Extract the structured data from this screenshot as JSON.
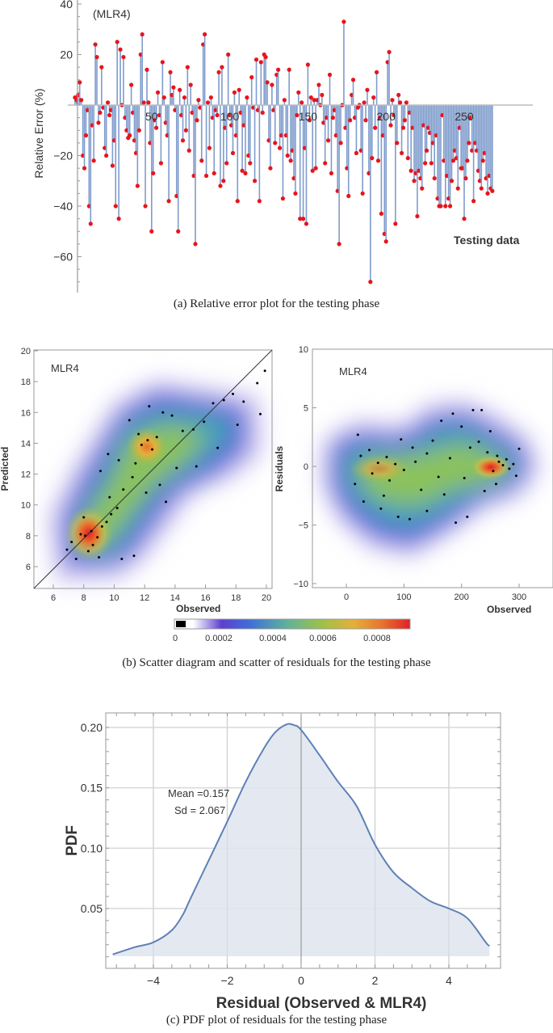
{
  "captions": {
    "a": "(a) Relative error plot for the testing phase",
    "b": "(b) Scatter diagram and scatter of residuals for the testing phase",
    "c": "(c) PDF plot of residuals for the testing phase"
  },
  "colors": {
    "stem": "#7f9ccc",
    "stem_marker": "#e8141c",
    "pdf_line": "#5e81b5",
    "pdf_fill": "#dfe5ef",
    "grid": "#d9d9d9",
    "axis": "#999999",
    "text": "#333333"
  },
  "chart_data": [
    {
      "id": "a",
      "type": "stem",
      "title": "(MLR4)",
      "xlabel": "Testing data",
      "ylabel": "Relative Error (%)",
      "xlim": [
        0,
        290
      ],
      "ylim": [
        -75,
        40
      ],
      "xticks": [
        50,
        100,
        150,
        200,
        250
      ],
      "yticks": [
        40,
        20,
        -20,
        -40,
        -60
      ],
      "values": [
        3,
        2,
        4,
        9,
        2,
        -20,
        -25,
        -12,
        -2,
        -40,
        -47,
        -8,
        -22,
        24,
        19,
        -7,
        -3,
        15,
        -1,
        -17,
        -20,
        1,
        -4,
        -2,
        -24,
        -14,
        -40,
        25,
        -45,
        22,
        0,
        19,
        -5,
        -10,
        -13,
        -12,
        8,
        -3,
        -14,
        -19,
        -32,
        -10,
        20,
        28,
        1,
        -40,
        14,
        1,
        -15,
        -50,
        -27,
        -6,
        -9,
        5,
        -4,
        -23,
        17,
        3,
        -7,
        -12,
        -38,
        13,
        4,
        7,
        -2,
        -36,
        -50,
        6,
        -4,
        -14,
        3,
        -10,
        15,
        -18,
        8,
        -3,
        -28,
        -55,
        -6,
        2,
        -1,
        -22,
        24,
        28,
        -28,
        1,
        -17,
        3,
        -5,
        -27,
        -2,
        -4,
        13,
        -32,
        15,
        -30,
        -9,
        -23,
        20,
        -4,
        -8,
        -19,
        5,
        -12,
        -38,
        6,
        -3,
        -26,
        -8,
        -27,
        3,
        -20,
        -23,
        11,
        -1,
        -30,
        18,
        -2,
        -38,
        17,
        -3,
        20,
        19,
        9,
        -14,
        -25,
        8,
        -2,
        -15,
        12,
        14,
        -17,
        -12,
        -37,
        2,
        -12,
        -20,
        14,
        -22,
        -18,
        -29,
        -35,
        -4,
        5,
        -45,
        1,
        -45,
        -17,
        -47,
        16,
        -6,
        3,
        -26,
        2,
        -25,
        2,
        8,
        0,
        4,
        -7,
        -23,
        -5,
        -14,
        12,
        -27,
        -5,
        -2,
        -12,
        -34,
        -55,
        -15,
        0,
        33,
        -9,
        -25,
        -36,
        -6,
        4,
        10,
        -5,
        -19,
        -1,
        0,
        -18,
        -35,
        1,
        -6,
        6,
        -27,
        -70,
        -21,
        3,
        -9,
        13,
        -22,
        -5,
        -43,
        -12,
        -51,
        -54,
        17,
        21,
        -8,
        2,
        -4,
        -47,
        -15,
        4,
        1,
        -19,
        -9,
        -6,
        1,
        -21,
        -3,
        -26,
        -9,
        -30,
        -27,
        -44,
        -26,
        -29,
        -33,
        -8,
        -23,
        -18,
        -9,
        -11,
        -23,
        -15,
        -29,
        -12,
        -37,
        -40,
        -40,
        -4,
        -22,
        -40,
        -28,
        -37,
        -40,
        -30,
        -22,
        -18,
        -21,
        -33,
        -9,
        -25,
        -25,
        -45,
        -29,
        -22,
        -15,
        -5,
        -18,
        -38,
        -15,
        -18,
        -26,
        -30,
        -33,
        -22,
        -19,
        -29,
        -35,
        -28,
        -33,
        -34
      ],
      "grid": false
    },
    {
      "id": "b-left",
      "type": "scatter-density",
      "title": "MLR4",
      "xlabel": "Observed",
      "ylabel": "Predicted",
      "xlim": [
        4.5,
        20.5
      ],
      "ylim": [
        4.5,
        20
      ],
      "xticks": [
        6,
        8,
        10,
        12,
        14,
        16,
        18,
        20
      ],
      "yticks": [
        6,
        8,
        10,
        12,
        14,
        16,
        18,
        20
      ],
      "reference_line": "y = x",
      "density_peaks": [
        {
          "x": 8.8,
          "y": 8.2,
          "level": "high"
        },
        {
          "x": 12.0,
          "y": 14.0,
          "level": "medium-high"
        }
      ],
      "points": [
        [
          8.1,
          8.0
        ],
        [
          8.5,
          8.3
        ],
        [
          8.9,
          7.9
        ],
        [
          9.2,
          8.6
        ],
        [
          8.6,
          7.4
        ],
        [
          9.5,
          8.9
        ],
        [
          7.8,
          8.1
        ],
        [
          8.3,
          7.0
        ],
        [
          9.8,
          9.4
        ],
        [
          10.2,
          9.8
        ],
        [
          7.5,
          6.5
        ],
        [
          9.0,
          6.6
        ],
        [
          10.5,
          6.5
        ],
        [
          11.3,
          6.7
        ],
        [
          8.0,
          9.2
        ],
        [
          9.7,
          10.5
        ],
        [
          10.6,
          11.0
        ],
        [
          11.2,
          11.8
        ],
        [
          11.8,
          13.9
        ],
        [
          12.2,
          14.2
        ],
        [
          12.5,
          13.6
        ],
        [
          11.6,
          14.6
        ],
        [
          12.8,
          14.4
        ],
        [
          11.0,
          15.5
        ],
        [
          12.3,
          16.4
        ],
        [
          13.2,
          16.0
        ],
        [
          13.8,
          15.8
        ],
        [
          14.5,
          14.8
        ],
        [
          15.2,
          14.9
        ],
        [
          15.9,
          15.4
        ],
        [
          16.5,
          16.6
        ],
        [
          17.2,
          16.8
        ],
        [
          17.8,
          17.2
        ],
        [
          18.5,
          16.7
        ],
        [
          19.4,
          17.9
        ],
        [
          19.9,
          18.7
        ],
        [
          19.6,
          15.9
        ],
        [
          18.1,
          15.2
        ],
        [
          16.8,
          13.7
        ],
        [
          15.4,
          12.5
        ],
        [
          14.1,
          12.4
        ],
        [
          13.0,
          11.3
        ],
        [
          13.4,
          10.2
        ],
        [
          12.1,
          10.8
        ],
        [
          11.4,
          12.7
        ],
        [
          10.3,
          12.9
        ],
        [
          9.6,
          13.3
        ],
        [
          9.1,
          12.2
        ],
        [
          7.2,
          7.6
        ],
        [
          6.9,
          7.1
        ]
      ],
      "grid": false
    },
    {
      "id": "b-right",
      "type": "scatter-density",
      "title": "MLR4",
      "xlabel": "Observed",
      "ylabel": "Residuals",
      "xlim": [
        -20,
        360
      ],
      "ylim": [
        -10,
        10
      ],
      "xticks": [
        0,
        100,
        200,
        300
      ],
      "yticks": [
        10,
        5,
        0,
        -5,
        -10
      ],
      "density_peaks": [
        {
          "x": 272,
          "y": 0.3,
          "level": "high"
        },
        {
          "x": 80,
          "y": 0.1,
          "level": "medium"
        }
      ],
      "points": [
        [
          265,
          0.4
        ],
        [
          272,
          0.1
        ],
        [
          278,
          0.6
        ],
        [
          283,
          -0.2
        ],
        [
          262,
          0.9
        ],
        [
          290,
          0.2
        ],
        [
          255,
          -0.4
        ],
        [
          245,
          1.2
        ],
        [
          230,
          2.1
        ],
        [
          215,
          1.6
        ],
        [
          200,
          3.4
        ],
        [
          220,
          4.8
        ],
        [
          185,
          4.5
        ],
        [
          165,
          3.9
        ],
        [
          150,
          2.2
        ],
        [
          140,
          1.1
        ],
        [
          120,
          0.4
        ],
        [
          100,
          -0.3
        ],
        [
          85,
          0.2
        ],
        [
          70,
          0.8
        ],
        [
          55,
          0.3
        ],
        [
          40,
          1.4
        ],
        [
          20,
          2.7
        ],
        [
          15,
          -1.5
        ],
        [
          30,
          -3.0
        ],
        [
          60,
          -3.6
        ],
        [
          90,
          -4.3
        ],
        [
          110,
          -4.5
        ],
        [
          140,
          -3.8
        ],
        [
          170,
          -2.4
        ],
        [
          190,
          -4.8
        ],
        [
          210,
          -4.3
        ],
        [
          240,
          -2.1
        ],
        [
          260,
          -1.5
        ],
        [
          295,
          -0.8
        ],
        [
          300,
          1.5
        ],
        [
          250,
          3.0
        ],
        [
          235,
          4.8
        ],
        [
          130,
          -2.0
        ],
        [
          75,
          -1.2
        ],
        [
          45,
          -0.6
        ],
        [
          115,
          1.6
        ],
        [
          160,
          -0.9
        ],
        [
          180,
          0.7
        ],
        [
          205,
          -1.0
        ],
        [
          95,
          2.3
        ],
        [
          65,
          -2.5
        ],
        [
          25,
          0.9
        ]
      ],
      "grid": false
    },
    {
      "id": "b-colorbar",
      "type": "colorbar",
      "ticks": [
        "0",
        "0.0002",
        "0.0004",
        "0.0006",
        "0.0008"
      ],
      "range": [
        0,
        0.0009
      ]
    },
    {
      "id": "c",
      "type": "area",
      "title": "",
      "xlabel": "Residual (Observed & MLR4)",
      "ylabel": "PDF",
      "xlim": [
        -5.3,
        5.3
      ],
      "ylim": [
        0,
        0.212
      ],
      "xticks": [
        -4,
        -2,
        0,
        2,
        4
      ],
      "yticks": [
        0.05,
        0.1,
        0.15,
        0.2
      ],
      "annotation": [
        "Mean =0.157",
        "Sd = 2.067"
      ],
      "x": [
        -5.1,
        -4.5,
        -4.0,
        -3.5,
        -3.2,
        -3.0,
        -2.5,
        -2.0,
        -1.5,
        -1.0,
        -0.7,
        -0.4,
        -0.2,
        0.0,
        0.5,
        1.0,
        1.5,
        2.0,
        2.5,
        3.0,
        3.5,
        4.0,
        4.5,
        5.0,
        5.1
      ],
      "y": [
        0.012,
        0.018,
        0.022,
        0.032,
        0.045,
        0.058,
        0.09,
        0.122,
        0.155,
        0.183,
        0.196,
        0.2025,
        0.202,
        0.198,
        0.177,
        0.155,
        0.135,
        0.103,
        0.08,
        0.067,
        0.056,
        0.05,
        0.042,
        0.022,
        0.019
      ],
      "grid": true
    }
  ]
}
